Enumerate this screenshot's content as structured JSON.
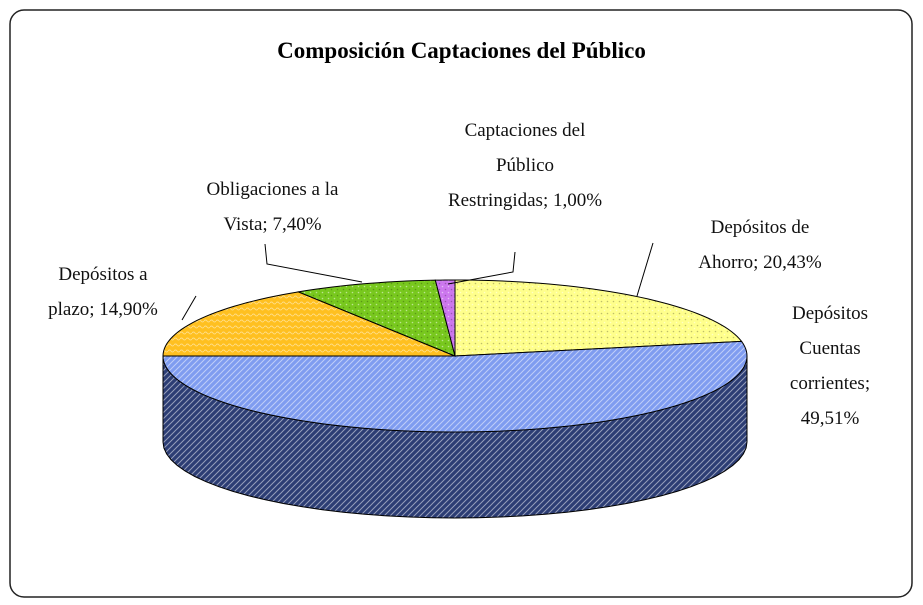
{
  "chart_data": {
    "type": "pie3d",
    "title": "Composición Captaciones del Público",
    "categories": [
      "Depósitos de Ahorro",
      "Depósitos Cuentas corrientes",
      "Depósitos a plazo",
      "Obligaciones a la Vista",
      "Captaciones del Público Restringidas"
    ],
    "values": [
      20.43,
      49.51,
      14.9,
      7.4,
      1.0
    ],
    "value_labels": [
      "20,43%",
      "49,51%",
      "14,90%",
      "7,40%",
      "1,00%"
    ],
    "label_separator": "; ",
    "colors": [
      "#ffff8c",
      "#7f9cf0",
      "#ffc020",
      "#78c81e",
      "#cc77ee"
    ],
    "side_colors": [
      "#c8c860",
      "#2c3d74",
      "#c89010",
      "#4c8a10",
      "#8a44a8"
    ]
  }
}
